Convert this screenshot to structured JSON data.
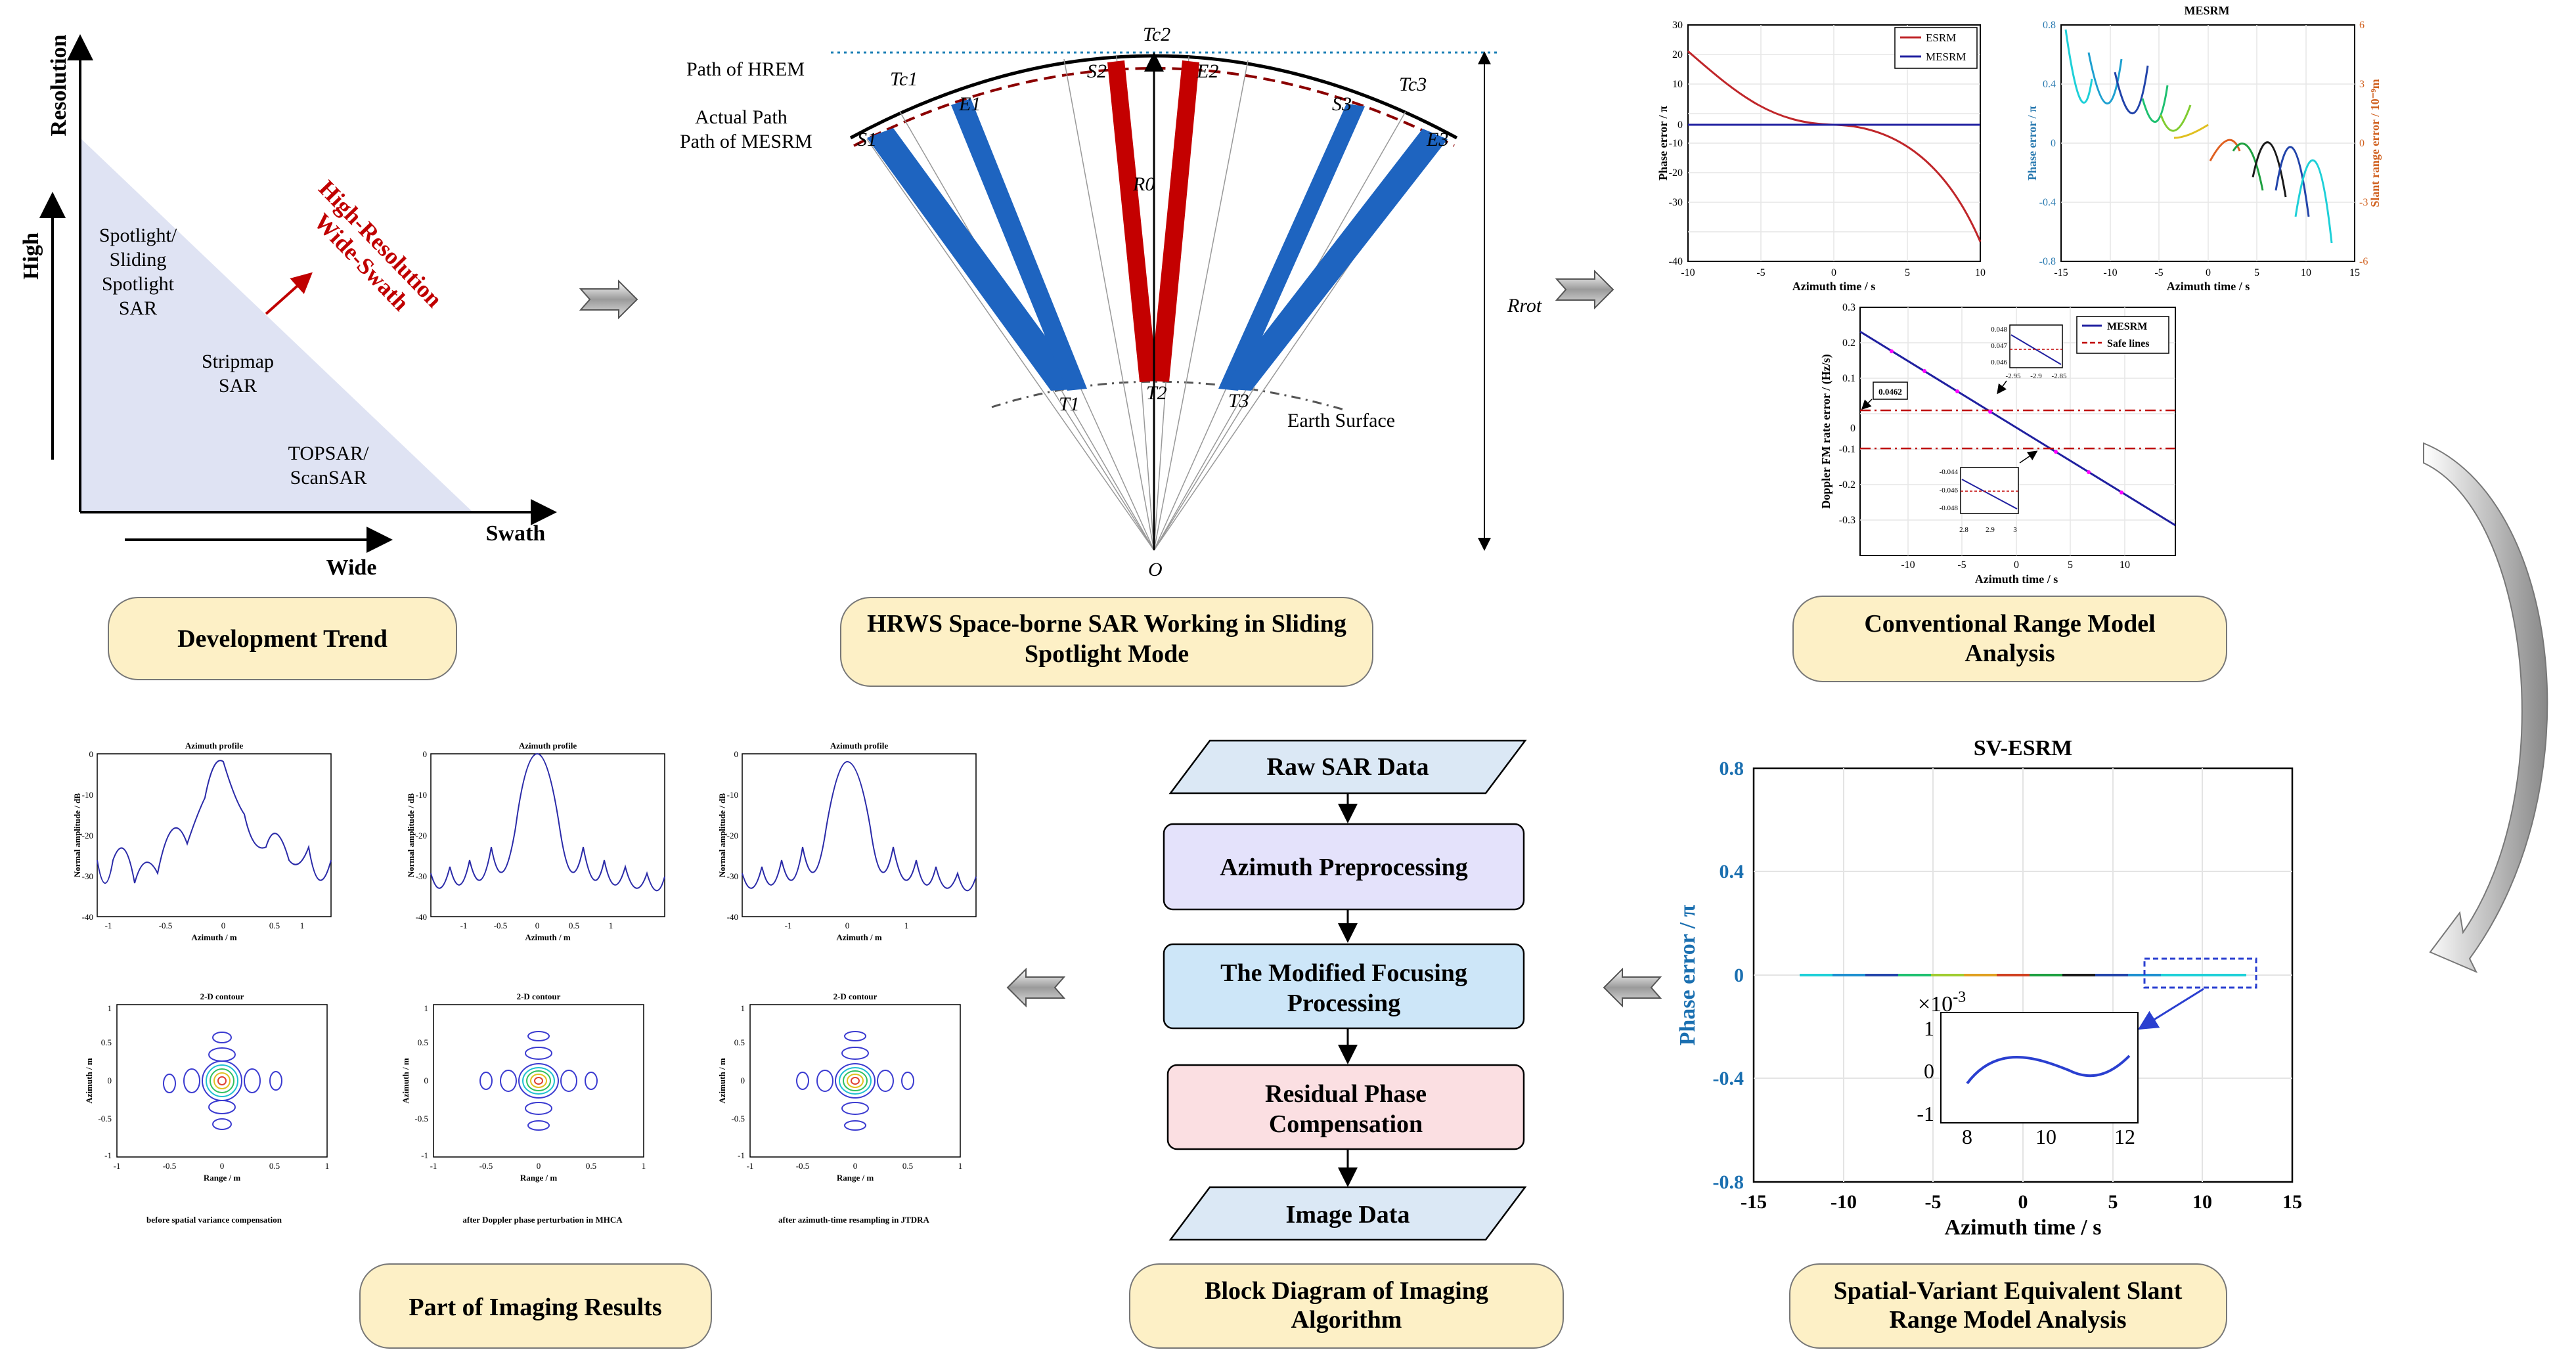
{
  "panels": {
    "dev_trend": {
      "caption": "Development Trend",
      "axis_y": "Resolution",
      "axis_x": "Swath",
      "high": "High",
      "wide": "Wide",
      "region1": [
        "Spotlight/",
        "Sliding",
        "Spotlight",
        "SAR"
      ],
      "region2": [
        "Stripmap",
        "SAR"
      ],
      "region3": [
        "TOPSAR/",
        "ScanSAR"
      ],
      "trend": [
        "High-Resolution",
        "Wide-Swath"
      ]
    },
    "geometry": {
      "caption_line1": "HRWS Space-borne SAR Working in Sliding",
      "caption_line2": "Spotlight Mode",
      "path_hrem": "Path of HREM",
      "actual_path": "Actual Path",
      "path_mesrm": "Path of MESRM",
      "earth_surface": "Earth Surface",
      "tc2": "Tc2",
      "tc1": "Tc1",
      "tc3": "Tc3",
      "s1": "S1",
      "e1": "E1",
      "s2": "S2",
      "e2": "E2",
      "s3": "S3",
      "e3": "E3",
      "t1": "T1",
      "t2": "T2",
      "t3": "T3",
      "r0": "R0",
      "rrot": "Rrot",
      "o": "O"
    },
    "conventional": {
      "caption_line1": "Conventional  Range Model",
      "caption_line2": "Analysis",
      "p1_ylabel": "Phase error / π",
      "p1_xlabel": "Azimuth time / s",
      "p1_legend": [
        "ESRM",
        "MESRM"
      ],
      "p1_yticks": [
        "30",
        "20",
        "10",
        "0",
        "-10",
        "-20",
        "-30",
        "-40"
      ],
      "p1_xticks": [
        "-10",
        "-5",
        "0",
        "5",
        "10"
      ],
      "p2_title": "MESRM",
      "p2_ylabel": "Phase error / π",
      "p2_ylabel_right": "Slant range error / 10⁻⁹m",
      "p2_xlabel": "Azimuth time / s",
      "p2_yticks": [
        "0.8",
        "0.4",
        "0",
        "-0.4",
        "-0.8"
      ],
      "p2_yticks_right": [
        "6",
        "3",
        "0",
        "-3",
        "-6"
      ],
      "p2_xticks": [
        "-15",
        "-10",
        "-5",
        "0",
        "5",
        "10",
        "15"
      ],
      "p3_ylabel": "Doppler FM rate error / (Hz/s)",
      "p3_xlabel": "Azimuth time / s",
      "p3_legend": [
        "MESRM",
        "Safe lines"
      ],
      "p3_yticks": [
        "0.3",
        "0.2",
        "0.1",
        "0",
        "-0.1",
        "-0.2",
        "-0.3"
      ],
      "p3_xticks": [
        "-10",
        "-5",
        "0",
        "5",
        "10"
      ],
      "p3_marker": "0.0462",
      "inset1_yticks": [
        "0.048",
        "0.047",
        "0.046"
      ],
      "inset1_xticks": [
        "-2.95",
        "-2.9",
        "-2.85"
      ],
      "inset2_yticks": [
        "-0.044",
        "-0.046",
        "-0.048"
      ],
      "inset2_xticks": [
        "2.8",
        "2.9",
        "3"
      ]
    },
    "svesrm": {
      "caption_line1": "Spatial-Variant Equivalent Slant",
      "caption_line2": "Range Model Analysis",
      "title": "SV-ESRM",
      "ylabel": "Phase error / π",
      "xlabel": "Azimuth time / s",
      "yticks": [
        "0.8",
        "0.4",
        "0",
        "-0.4",
        "-0.8"
      ],
      "xticks": [
        "-15",
        "-10",
        "-5",
        "0",
        "5",
        "10",
        "15"
      ],
      "inset_exp": "×10",
      "inset_exp_sup": "-3",
      "inset_yticks": [
        "1",
        "0",
        "-1"
      ],
      "inset_xticks": [
        "8",
        "10",
        "12"
      ]
    },
    "block": {
      "caption_line1": "Block Diagram of Imaging",
      "caption_line2": "Algorithm",
      "raw": "Raw SAR Data",
      "step1": "Azimuth Preprocessing",
      "step2_line1": "The Modified Focusing",
      "step2_line2": "Processing",
      "step3_line1": "Residual Phase",
      "step3_line2": "Compensation",
      "image": "Image Data"
    },
    "results": {
      "caption": "Part of Imaging Results",
      "profile_title": "Azimuth profile",
      "profile_ylabel": "Normal amplitude / dB",
      "profile_xlabel": "Azimuth / m",
      "profile_yticks": [
        "0",
        "-10",
        "-20",
        "-30",
        "-40"
      ],
      "contour_title": "2-D contour",
      "contour_ylabel": "Azimuth / m",
      "contour_xlabel": "Range / m",
      "sub1": "before spatial variance compensation",
      "sub2": "after Doppler phase perturbation in MHCA",
      "sub3": "after azimuth-time resampling in JTDRA",
      "xt1": [
        "-1",
        "-0.5",
        "0",
        "0.5",
        "1"
      ],
      "xt3": [
        "-1",
        "0",
        "1"
      ],
      "cxt": [
        "-1",
        "-0.5",
        "0",
        "0.5",
        "1"
      ],
      "cyt": [
        "1",
        "0.5",
        "0",
        "-0.5",
        "-1"
      ]
    }
  },
  "colors": {
    "caption_bg": "#fdf0c6",
    "blue_fill": "#6c8cc4",
    "red_beam": "#c40000",
    "blue_beam": "#1e64c0",
    "dark_red_text": "#c00000",
    "lavender_box": "#e4e2fb",
    "light_blue_box": "#cde6f8",
    "pink_box": "#fbdfe2"
  }
}
